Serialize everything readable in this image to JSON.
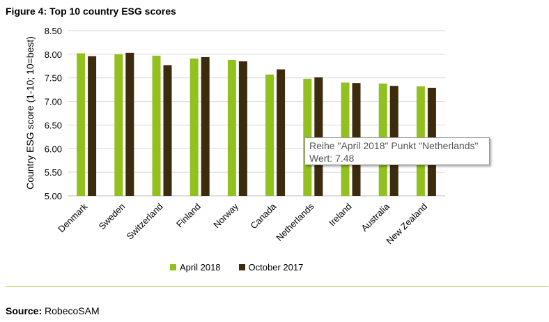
{
  "figure_title": "Figure 4: Top 10 country ESG scores",
  "chart_data": {
    "type": "bar",
    "title": "",
    "xlabel": "",
    "ylabel": "Country ESG score (1-10; 10=best)",
    "ylim": [
      5.0,
      8.5
    ],
    "yticks": [
      "5.00",
      "5.50",
      "6.00",
      "6.50",
      "7.00",
      "7.50",
      "8.00",
      "8.50"
    ],
    "grid": true,
    "legend_position": "bottom",
    "categories": [
      "Denmark",
      "Sweden",
      "Switzerland",
      "Finland",
      "Norway",
      "Canada",
      "Netherlands",
      "Ireland",
      "Australia",
      "New Zealand"
    ],
    "series": [
      {
        "name": "April 2018",
        "color": "#92c01f",
        "values": [
          8.02,
          8.0,
          7.97,
          7.91,
          7.88,
          7.57,
          7.48,
          7.4,
          7.38,
          7.32
        ]
      },
      {
        "name": "October 2017",
        "color": "#3d2b0e",
        "values": [
          7.96,
          8.03,
          7.77,
          7.94,
          7.85,
          7.68,
          7.51,
          7.39,
          7.33,
          7.29
        ]
      }
    ]
  },
  "tooltip": {
    "line1": "Reihe \"April 2018\" Punkt \"Netherlands\"",
    "line2": "Wert: 7.48"
  },
  "source": {
    "label": "Source:",
    "text": "RobecoSAM"
  }
}
